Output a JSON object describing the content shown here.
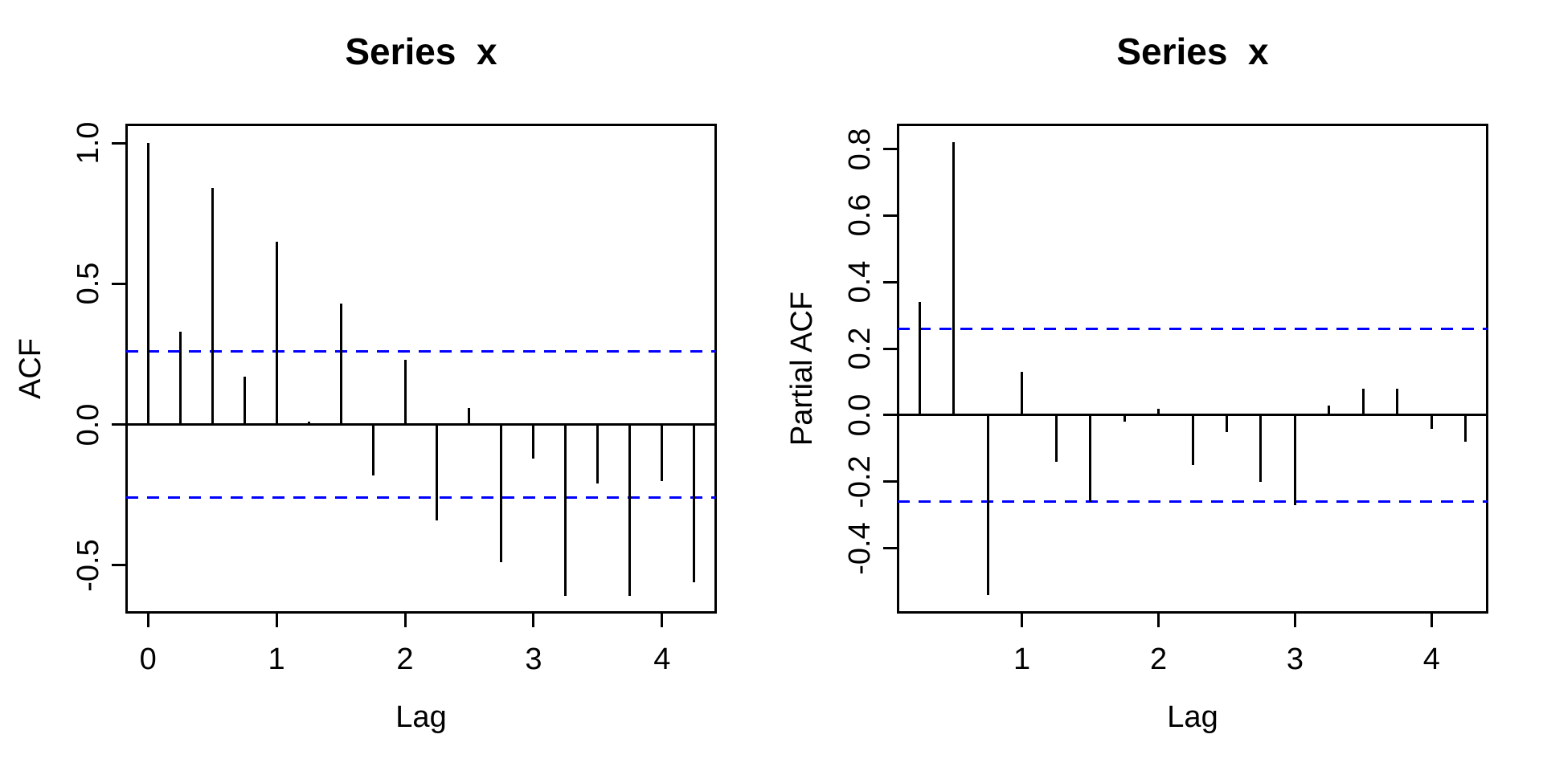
{
  "figure": {
    "background_color": "#ffffff",
    "line_color": "#000000",
    "confidence_color": "#0000FF"
  },
  "chart_data": [
    {
      "type": "stem",
      "subtype": "autocorrelation",
      "title": "Series  x",
      "xlabel": "Lag",
      "ylabel": "ACF",
      "x": [
        0,
        0.25,
        0.5,
        0.75,
        1,
        1.25,
        1.5,
        1.75,
        2,
        2.25,
        2.5,
        2.75,
        3,
        3.25,
        3.5,
        3.75,
        4,
        4.25
      ],
      "values": [
        1.0,
        0.33,
        0.84,
        0.17,
        0.65,
        0.01,
        0.43,
        -0.18,
        0.23,
        -0.34,
        0.06,
        -0.49,
        -0.12,
        -0.61,
        -0.21,
        -0.61,
        -0.2,
        -0.56
      ],
      "confidence_bounds": [
        0.26,
        -0.26
      ],
      "confidence_line_style": "dashed",
      "confidence_color": "#0000FF",
      "line_color": "#000000",
      "grid": false,
      "xlim": [
        -0.17,
        4.42
      ],
      "ylim": [
        -0.669,
        1.066
      ],
      "xticks": [
        {
          "v": 0,
          "label": "0"
        },
        {
          "v": 1,
          "label": "1"
        },
        {
          "v": 2,
          "label": "2"
        },
        {
          "v": 3,
          "label": "3"
        },
        {
          "v": 4,
          "label": "4"
        }
      ],
      "yticks": [
        {
          "v": 1.0,
          "label": "1.0"
        },
        {
          "v": 0.5,
          "label": "0.5"
        },
        {
          "v": 0.0,
          "label": "0.0"
        },
        {
          "v": -0.5,
          "label": "-0.5"
        }
      ]
    },
    {
      "type": "stem",
      "subtype": "partial-autocorrelation",
      "title": "Series  x",
      "xlabel": "Lag",
      "ylabel": "Partial ACF",
      "x": [
        0.25,
        0.5,
        0.75,
        1,
        1.25,
        1.5,
        1.75,
        2,
        2.25,
        2.5,
        2.75,
        3,
        3.25,
        3.5,
        3.75,
        4,
        4.25
      ],
      "values": [
        0.34,
        0.82,
        -0.54,
        0.13,
        -0.14,
        -0.26,
        -0.02,
        0.02,
        -0.15,
        -0.05,
        -0.2,
        -0.27,
        0.03,
        0.08,
        0.08,
        -0.04,
        -0.08
      ],
      "confidence_bounds": [
        0.26,
        -0.26
      ],
      "confidence_line_style": "dashed",
      "confidence_color": "#0000FF",
      "line_color": "#000000",
      "grid": false,
      "xlim": [
        0.09,
        4.41
      ],
      "ylim": [
        -0.594,
        0.874
      ],
      "xticks": [
        {
          "v": 1,
          "label": "1"
        },
        {
          "v": 2,
          "label": "2"
        },
        {
          "v": 3,
          "label": "3"
        },
        {
          "v": 4,
          "label": "4"
        }
      ],
      "yticks": [
        {
          "v": 0.8,
          "label": "0.8"
        },
        {
          "v": 0.6,
          "label": "0.6"
        },
        {
          "v": 0.4,
          "label": "0.4"
        },
        {
          "v": 0.2,
          "label": "0.2"
        },
        {
          "v": 0.0,
          "label": "0.0"
        },
        {
          "v": -0.2,
          "label": "-0.2"
        },
        {
          "v": -0.4,
          "label": "-0.4"
        }
      ]
    }
  ]
}
